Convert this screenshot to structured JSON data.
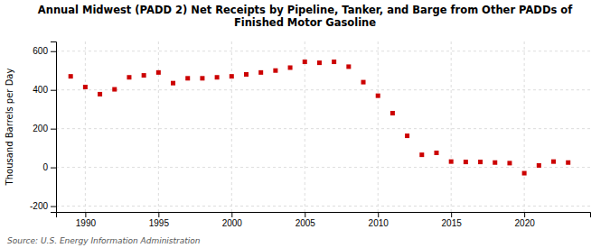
{
  "chart_data": {
    "type": "scatter",
    "title": "Annual Midwest (PADD 2) Net Receipts by Pipeline, Tanker, and Barge from Other PADDs of\nFinished Motor Gasoline",
    "ylabel": "Thousand Barrels per Day",
    "source": "Source: U.S. Energy Information Administration",
    "x": [
      1989,
      1990,
      1991,
      1992,
      1993,
      1994,
      1995,
      1996,
      1997,
      1998,
      1999,
      2000,
      2001,
      2002,
      2003,
      2004,
      2005,
      2006,
      2007,
      2008,
      2009,
      2010,
      2011,
      2012,
      2013,
      2014,
      2015,
      2016,
      2017,
      2018,
      2019,
      2020,
      2021,
      2022,
      2023
    ],
    "values": [
      470,
      415,
      378,
      403,
      465,
      475,
      490,
      435,
      460,
      460,
      465,
      470,
      480,
      490,
      500,
      515,
      545,
      540,
      545,
      520,
      440,
      370,
      280,
      163,
      65,
      75,
      30,
      28,
      28,
      25,
      22,
      -30,
      10,
      30,
      25
    ],
    "color": "#cc0000",
    "marker": "square",
    "xlim": [
      1988.0,
      2024.5
    ],
    "ylim": [
      -230,
      650
    ],
    "xticks": [
      1990,
      1995,
      2000,
      2005,
      2010,
      2015,
      2020
    ],
    "yticks": [
      -200,
      0,
      200,
      400,
      600
    ],
    "grid": true
  }
}
